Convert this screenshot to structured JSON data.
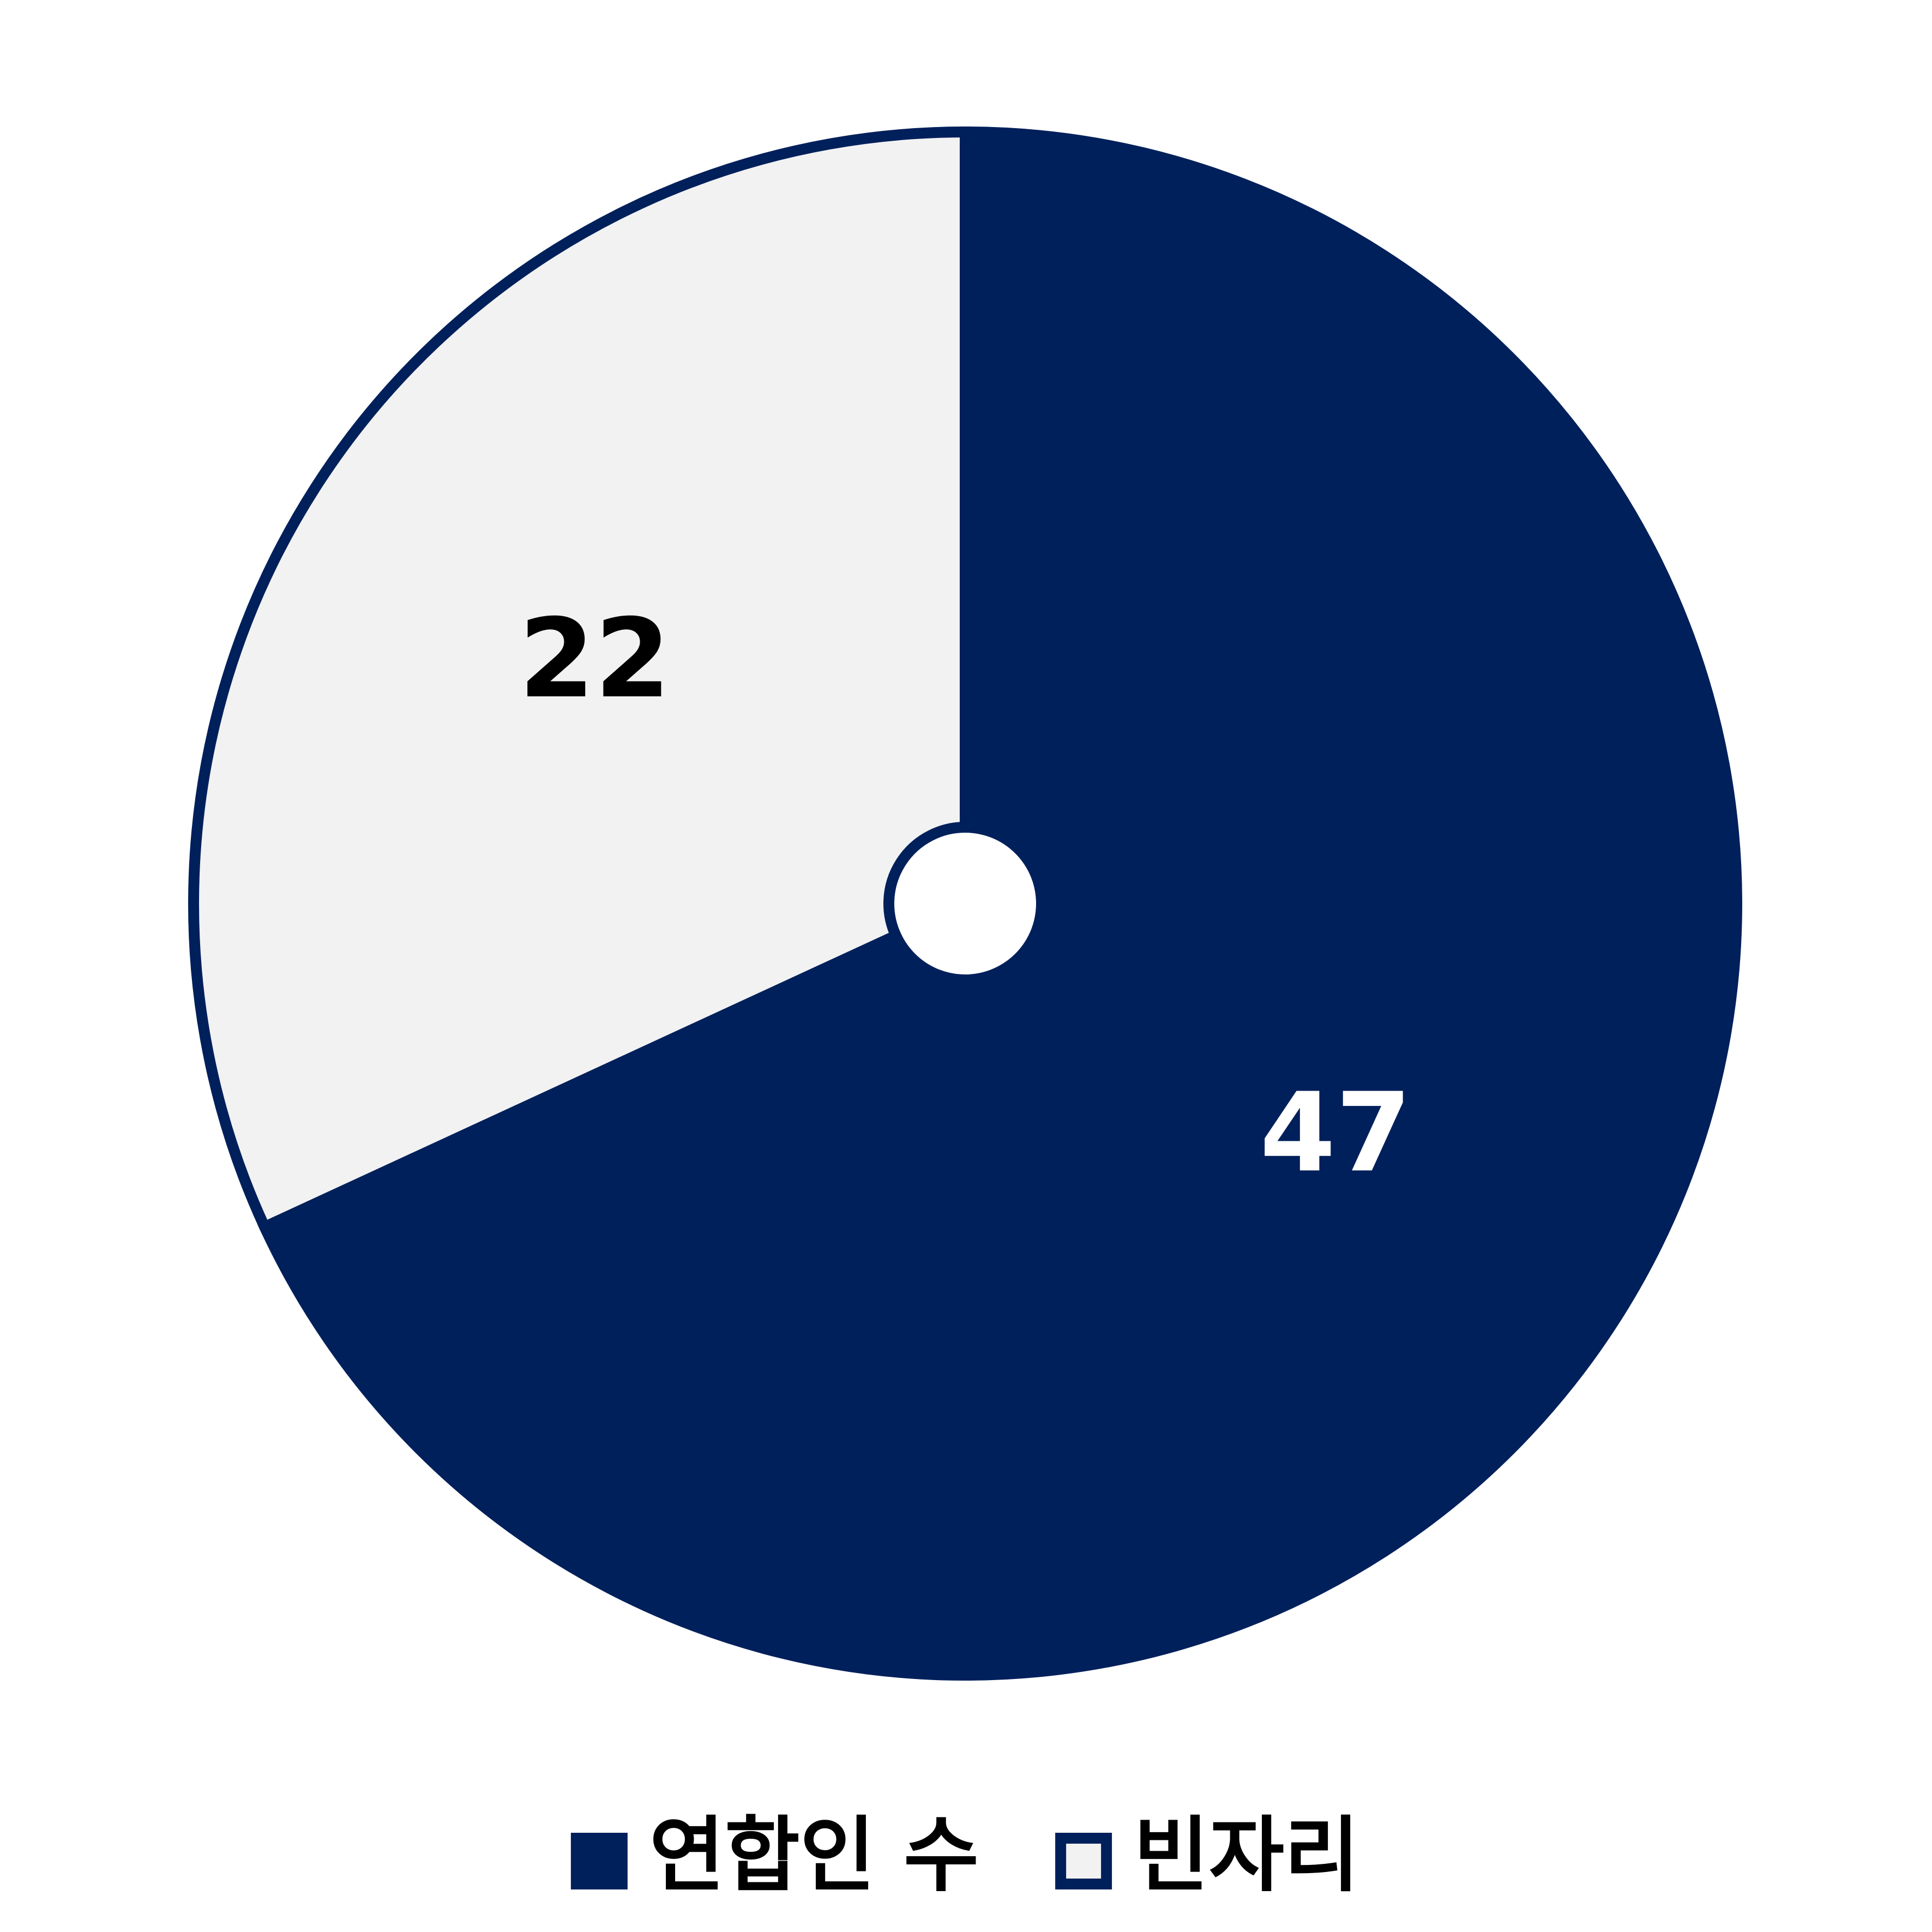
{
  "chart_data": {
    "type": "pie",
    "categories": [
      "연합인 수",
      "빈자리"
    ],
    "values": [
      47,
      22
    ],
    "colors": [
      "#00205b",
      "#f2f2f2"
    ],
    "label_colors": [
      "#ffffff",
      "#000000"
    ],
    "outline": "#00205b",
    "legend": "bottom"
  }
}
